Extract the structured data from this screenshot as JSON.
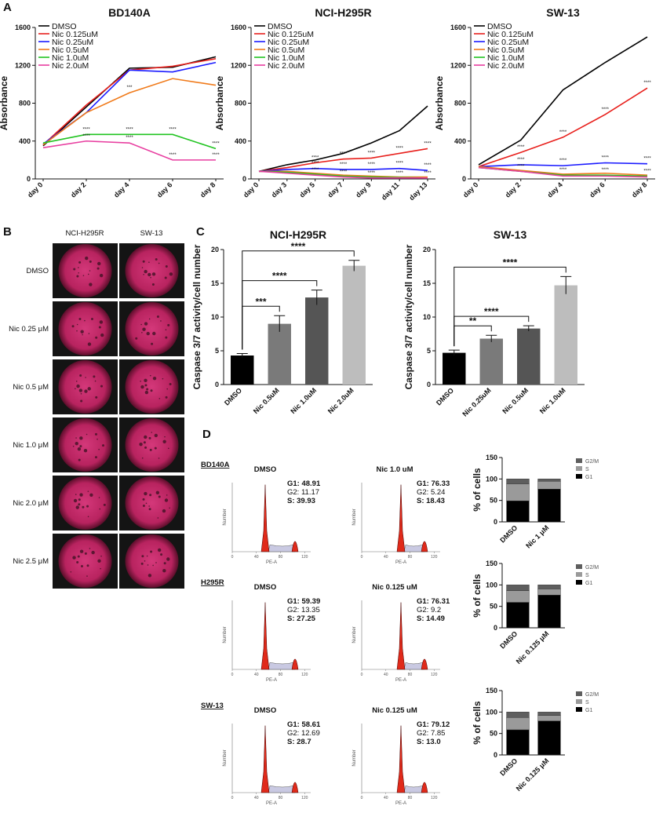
{
  "panel_labels": [
    "A",
    "B",
    "C",
    "D"
  ],
  "colony_images": {
    "columns": [
      "NCI-H295R",
      "SW-13"
    ],
    "rows": [
      "DMSO",
      "Nic 0.25 μM",
      "Nic 0.5 μM",
      "Nic 1.0 μM",
      "Nic 2.0 μM",
      "Nic 2.5 μM"
    ]
  },
  "flow_axes": {
    "x_label": "PE-A",
    "y_label": "Number",
    "xlim": [
      0,
      130
    ],
    "xticks": [
      0,
      40,
      80,
      120
    ]
  },
  "flow_panels": [
    {
      "sample": "BD140A",
      "panels": [
        {
          "title": "DMSO",
          "stats": [
            "G1: 48.91",
            "G2: 11.17",
            "S: 39.93"
          ]
        },
        {
          "title": "Nic 1.0 uM",
          "stats": [
            "G1: 76.33",
            "G2: 5.24",
            "S: 18.43"
          ]
        }
      ]
    },
    {
      "sample": "H295R",
      "panels": [
        {
          "title": "DMSO",
          "stats": [
            "G1: 59.39",
            "G2: 13.35",
            "S: 27.25"
          ]
        },
        {
          "title": "Nic 0.125 uM",
          "stats": [
            "G1: 76.31",
            "G2: 9.2",
            "S: 14.49"
          ]
        }
      ]
    },
    {
      "sample": "SW-13",
      "panels": [
        {
          "title": "DMSO",
          "stats": [
            "G1: 58.61",
            "G2: 12.69",
            "S: 28.7"
          ]
        },
        {
          "title": "Nic 0.125 uM",
          "stats": [
            "G1: 79.12",
            "G2: 7.85",
            "S: 13.0"
          ]
        }
      ]
    }
  ],
  "chart_data": [
    {
      "type": "line",
      "title": "BD140A",
      "y_label": "Absorbance",
      "legend": "upper left",
      "categories": [
        "day 0",
        "day 2",
        "day 4",
        "day 6",
        "day 8"
      ],
      "ylim": [
        0,
        1600
      ],
      "yticks": [
        0,
        400,
        800,
        1200,
        1600
      ],
      "series": [
        {
          "name": "DMSO",
          "color": "#000000",
          "values": [
            350,
            760,
            1170,
            1180,
            1290
          ]
        },
        {
          "name": "Nic 0.125uM",
          "color": "#e8201c",
          "values": [
            360,
            780,
            1150,
            1190,
            1270
          ]
        },
        {
          "name": "Nic 0.25uM",
          "color": "#1a1aff",
          "values": [
            370,
            700,
            1150,
            1130,
            1230
          ]
        },
        {
          "name": "Nic 0.5uM",
          "color": "#f07a1a",
          "values": [
            360,
            700,
            910,
            1060,
            990
          ],
          "significance": [
            null,
            null,
            "***",
            null,
            null
          ]
        },
        {
          "name": "Nic 1.0uM",
          "color": "#22c422",
          "values": [
            380,
            470,
            470,
            470,
            320
          ],
          "significance": [
            null,
            "****",
            "****",
            "****",
            "****"
          ]
        },
        {
          "name": "Nic 2.0uM",
          "color": "#e83ea0",
          "values": [
            330,
            400,
            380,
            200,
            200
          ],
          "significance": [
            null,
            "****",
            "****",
            "****",
            "****"
          ]
        }
      ]
    },
    {
      "type": "line",
      "title": "NCI-H295R",
      "y_label": "Absorbance",
      "legend": "upper left",
      "categories": [
        "day 0",
        "day 3",
        "day 5",
        "day 7",
        "day 9",
        "day 11",
        "day 13"
      ],
      "ylim": [
        0,
        1600
      ],
      "yticks": [
        0,
        400,
        800,
        1200,
        1600
      ],
      "series": [
        {
          "name": "DMSO",
          "color": "#000000",
          "values": [
            80,
            150,
            200,
            270,
            380,
            510,
            770
          ]
        },
        {
          "name": "Nic 0.125uM",
          "color": "#e8201c",
          "values": [
            80,
            120,
            170,
            210,
            220,
            270,
            320
          ],
          "significance": [
            null,
            null,
            "****",
            "****",
            "****",
            "****",
            "****"
          ]
        },
        {
          "name": "Nic 0.25uM",
          "color": "#1a1aff",
          "values": [
            80,
            100,
            110,
            100,
            100,
            110,
            90
          ],
          "significance": [
            null,
            null,
            "****",
            "****",
            "****",
            "****",
            "****"
          ]
        },
        {
          "name": "Nic 0.5uM",
          "color": "#f07a1a",
          "values": [
            80,
            80,
            60,
            40,
            30,
            20,
            20
          ]
        },
        {
          "name": "Nic 1.0uM",
          "color": "#22c422",
          "values": [
            80,
            70,
            50,
            30,
            20,
            15,
            10
          ]
        },
        {
          "name": "Nic 2.0uM",
          "color": "#e83ea0",
          "values": [
            80,
            60,
            40,
            20,
            10,
            10,
            10
          ],
          "significance": [
            null,
            null,
            "****",
            "****",
            "****",
            "****",
            "****"
          ]
        }
      ]
    },
    {
      "type": "line",
      "title": "SW-13",
      "y_label": "Absorbance",
      "legend": "upper left",
      "categories": [
        "day 0",
        "day 2",
        "day 4",
        "day 6",
        "day 8"
      ],
      "ylim": [
        0,
        1600
      ],
      "yticks": [
        0,
        400,
        800,
        1200,
        1600
      ],
      "series": [
        {
          "name": "DMSO",
          "color": "#000000",
          "values": [
            150,
            410,
            940,
            1230,
            1500
          ]
        },
        {
          "name": "Nic 0.125uM",
          "color": "#e8201c",
          "values": [
            130,
            280,
            440,
            680,
            960
          ],
          "significance": [
            null,
            "****",
            "****",
            "****",
            "****"
          ]
        },
        {
          "name": "Nic 0.25uM",
          "color": "#1a1aff",
          "values": [
            130,
            150,
            140,
            170,
            160
          ],
          "significance": [
            null,
            "****",
            "****",
            "****",
            "****"
          ]
        },
        {
          "name": "Nic 0.5uM",
          "color": "#f07a1a",
          "values": [
            130,
            90,
            50,
            60,
            40
          ]
        },
        {
          "name": "Nic 1.0uM",
          "color": "#22c422",
          "values": [
            120,
            80,
            40,
            40,
            30
          ],
          "significance": [
            null,
            "****",
            "****",
            "****",
            "****"
          ]
        },
        {
          "name": "Nic 2.0uM",
          "color": "#e83ea0",
          "values": [
            120,
            80,
            30,
            30,
            20
          ]
        }
      ]
    },
    {
      "type": "bar",
      "title": "NCI-H295R",
      "y_label": "Caspase 3/7 activity/cell number",
      "categories": [
        "DMSO",
        "Nic 0.5uM",
        "Nic 1.0uM",
        "Nic 2.0uM"
      ],
      "values": [
        4.3,
        9.0,
        12.9,
        17.6
      ],
      "errors": [
        0.3,
        1.2,
        1.1,
        0.8
      ],
      "colors": [
        "#000000",
        "#7a7a7a",
        "#555555",
        "#bdbdbd"
      ],
      "significance": [
        null,
        "***",
        "****",
        "****"
      ],
      "ylim": [
        0,
        20
      ],
      "yticks": [
        0,
        5,
        10,
        15,
        20
      ]
    },
    {
      "type": "bar",
      "title": "SW-13",
      "y_label": "Caspase 3/7 activity/cell number",
      "categories": [
        "DMSO",
        "Nic 0.25uM",
        "Nic 0.5uM",
        "Nic 1.0uM"
      ],
      "values": [
        4.7,
        6.8,
        8.3,
        14.7
      ],
      "errors": [
        0.4,
        0.5,
        0.4,
        1.3
      ],
      "colors": [
        "#000000",
        "#7a7a7a",
        "#555555",
        "#bdbdbd"
      ],
      "significance": [
        null,
        "**",
        "****",
        "****"
      ],
      "ylim": [
        0,
        20
      ],
      "yticks": [
        0,
        5,
        10,
        15,
        20
      ]
    },
    {
      "type": "stacked_bar",
      "y_label": "% of cells",
      "legend": "right",
      "categories": [
        "DMSO",
        "Nic 1 μM"
      ],
      "ylim": [
        0,
        150
      ],
      "yticks": [
        0,
        50,
        100,
        150
      ],
      "series": [
        {
          "name": "G1",
          "color": "#000000",
          "values": [
            48.91,
            76.33
          ]
        },
        {
          "name": "S",
          "color": "#9a9a9a",
          "values": [
            39.93,
            18.43
          ]
        },
        {
          "name": "G2/M",
          "color": "#5e5e5e",
          "values": [
            11.17,
            5.24
          ]
        }
      ]
    },
    {
      "type": "stacked_bar",
      "y_label": "% of cells",
      "legend": "right",
      "categories": [
        "DMSO",
        "Nic 0.125 μM"
      ],
      "ylim": [
        0,
        150
      ],
      "yticks": [
        0,
        50,
        100,
        150
      ],
      "series": [
        {
          "name": "G1",
          "color": "#000000",
          "values": [
            59.39,
            76.31
          ]
        },
        {
          "name": "S",
          "color": "#9a9a9a",
          "values": [
            27.25,
            14.49
          ]
        },
        {
          "name": "G2/M",
          "color": "#5e5e5e",
          "values": [
            13.35,
            9.2
          ]
        }
      ]
    },
    {
      "type": "stacked_bar",
      "y_label": "% of cells",
      "legend": "right",
      "categories": [
        "DMSO",
        "Nic 0.125 μM"
      ],
      "ylim": [
        0,
        150
      ],
      "yticks": [
        0,
        50,
        100,
        150
      ],
      "series": [
        {
          "name": "G1",
          "color": "#000000",
          "values": [
            58.61,
            79.12
          ]
        },
        {
          "name": "S",
          "color": "#9a9a9a",
          "values": [
            28.7,
            13.0
          ]
        },
        {
          "name": "G2/M",
          "color": "#5e5e5e",
          "values": [
            12.69,
            7.85
          ]
        }
      ]
    }
  ]
}
